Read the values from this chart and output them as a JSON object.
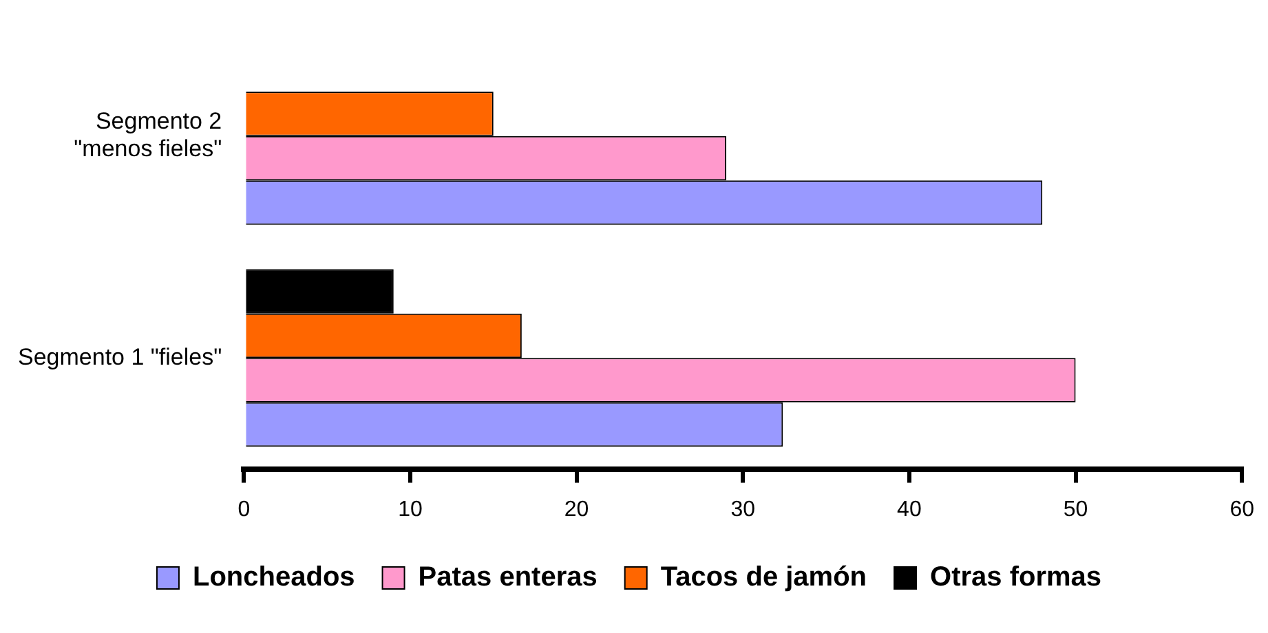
{
  "chart_data": {
    "type": "bar",
    "orientation": "horizontal",
    "categories": [
      "Segmento 2 \"menos fieles\"",
      "Segmento 1 \"fieles\""
    ],
    "series": [
      {
        "name": "Loncheados",
        "color": "#9999ff",
        "values": [
          48,
          32.4
        ]
      },
      {
        "name": "Patas enteras",
        "color": "#ff99cc",
        "values": [
          29,
          50
        ]
      },
      {
        "name": "Tacos de jamón",
        "color": "#ff6600",
        "values": [
          15,
          16.7
        ]
      },
      {
        "name": "Otras formas",
        "color": "#000000",
        "values": [
          null,
          9
        ]
      }
    ],
    "xlim": [
      0,
      60
    ],
    "xticks": [
      0,
      10,
      20,
      30,
      40,
      50,
      60
    ],
    "legend": "bottom"
  }
}
